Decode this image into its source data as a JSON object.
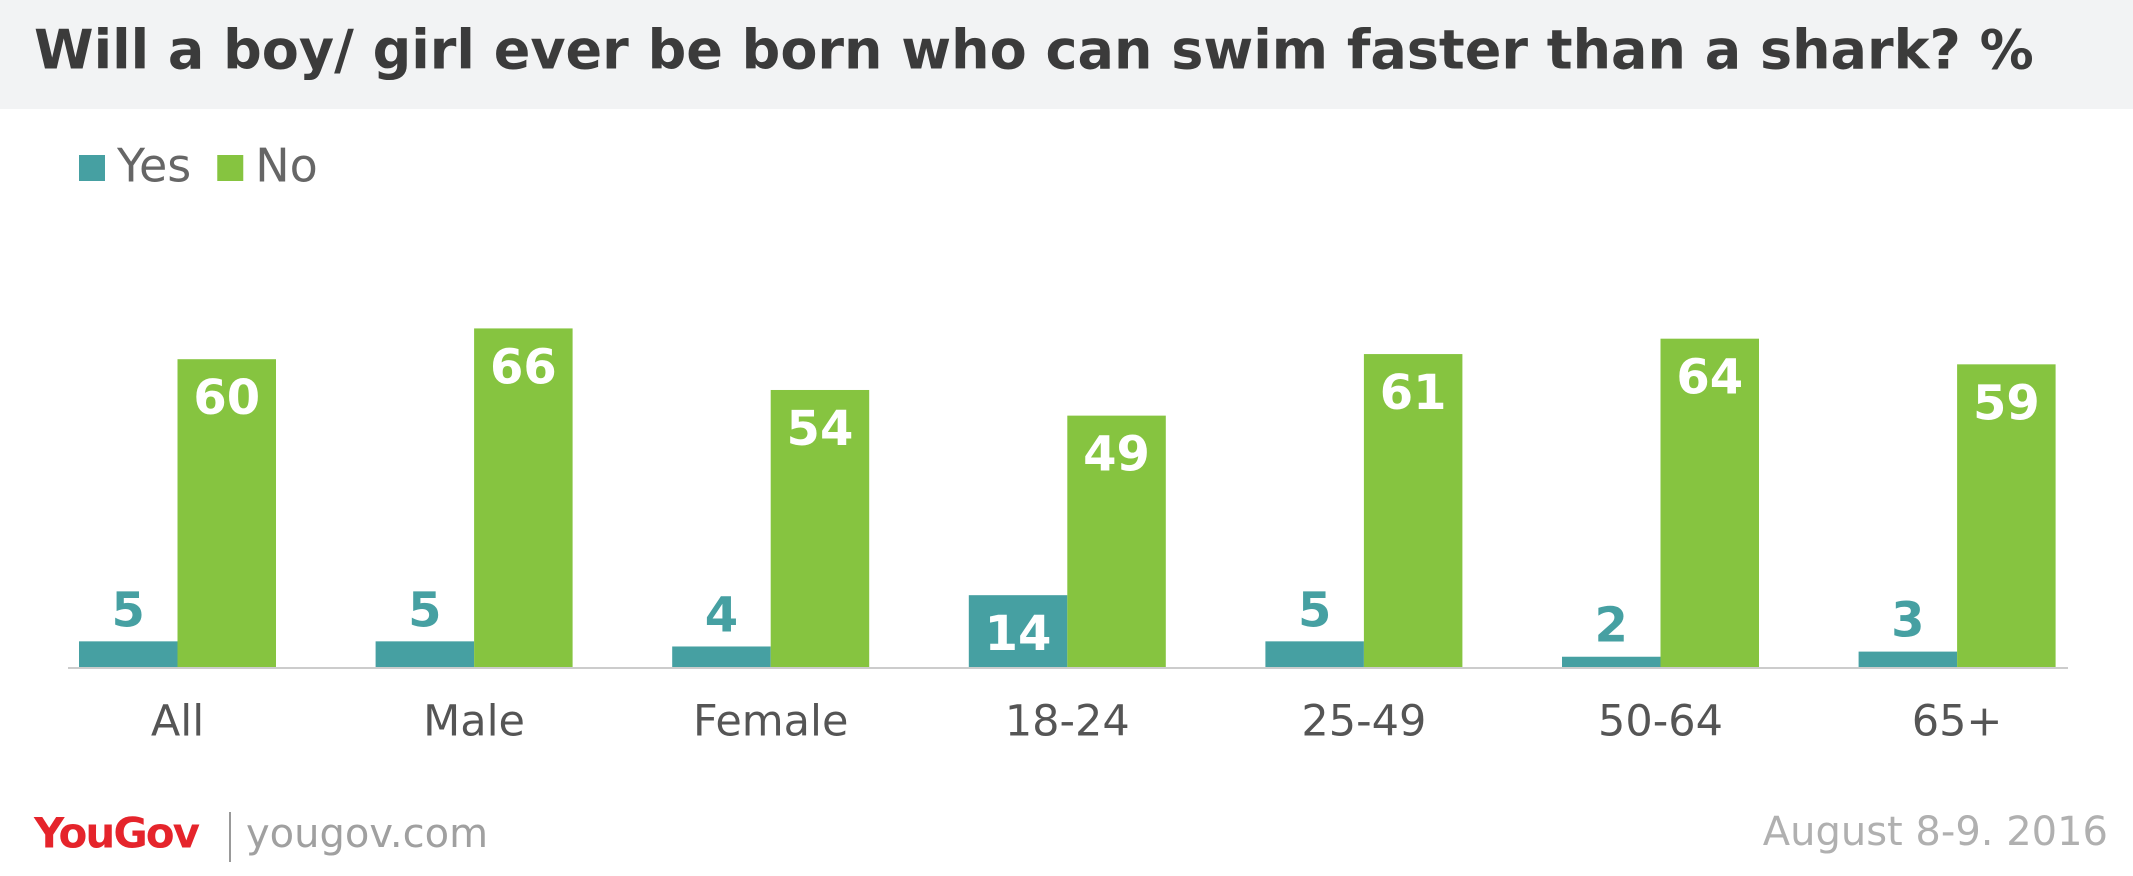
{
  "chart_data": {
    "type": "bar",
    "title": "Will a boy/ girl ever be born who can swim faster than a shark? %",
    "categories": [
      "All",
      "Male",
      "Female",
      "18-24",
      "25-49",
      "50-64",
      "65+"
    ],
    "series": [
      {
        "name": "Yes",
        "color": "#46a0a2",
        "values": [
          5,
          5,
          4,
          14,
          5,
          2,
          3
        ]
      },
      {
        "name": "No",
        "color": "#86c440",
        "values": [
          60,
          66,
          54,
          49,
          61,
          64,
          59
        ]
      }
    ]
  },
  "footer": {
    "logo": "YouGov",
    "source": "yougov.com",
    "date": "August 8-9. 2016"
  }
}
